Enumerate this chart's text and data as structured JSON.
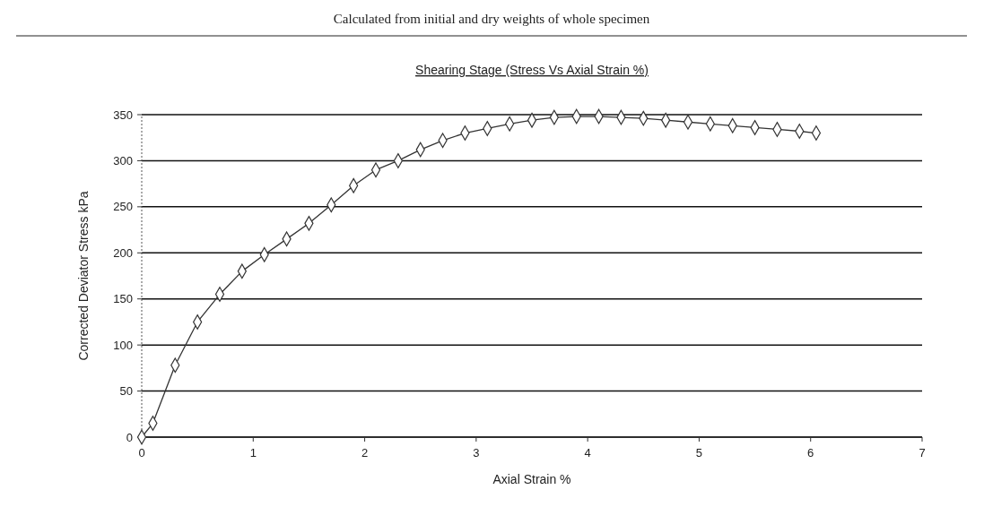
{
  "chart_data": {
    "type": "line",
    "title": "Shearing Stage (Stress Vs Axial Strain %)",
    "xlabel": "Axial Strain %",
    "ylabel": "Corrected Deviator Stress  kPa",
    "annotations": [
      "Calculated from initial and dry weights of whole specimen"
    ],
    "x": [
      0,
      0.1,
      0.3,
      0.5,
      0.7,
      0.9,
      1.1,
      1.3,
      1.5,
      1.7,
      1.9,
      2.1,
      2.3,
      2.5,
      2.7,
      2.9,
      3.1,
      3.3,
      3.5,
      3.7,
      3.9,
      4.1,
      4.3,
      4.5,
      4.7,
      4.9,
      5.1,
      5.3,
      5.5,
      5.7,
      5.9,
      6.05
    ],
    "series": [
      {
        "color": "#333333",
        "values": [
          0,
          15,
          78,
          125,
          155,
          180,
          198,
          215,
          232,
          252,
          273,
          290,
          300,
          312,
          322,
          330,
          335,
          340,
          344,
          347,
          348,
          348,
          347,
          346,
          344,
          342,
          340,
          338,
          336,
          334,
          332,
          330
        ]
      }
    ],
    "xlim": [
      0,
      7
    ],
    "xticks": [
      0,
      1,
      2,
      3,
      4,
      5,
      6,
      7
    ],
    "ylim": [
      0,
      350
    ],
    "yticks": [
      0,
      50,
      100,
      150,
      200,
      250,
      300,
      350
    ],
    "grid": "y",
    "marker": "diamond",
    "line_style": "solid"
  }
}
